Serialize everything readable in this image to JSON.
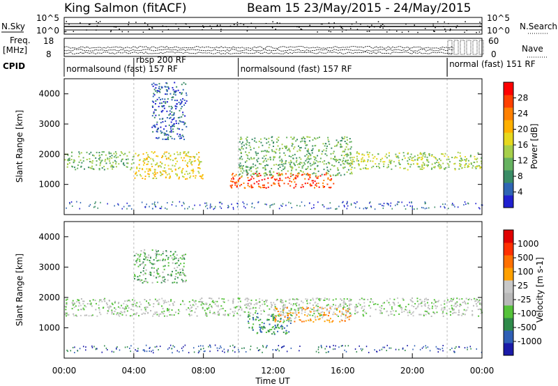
{
  "header": {
    "station": "King Salmon (fitACF)",
    "beam_dates": "Beam 15 23/May/2015 - 24/May/2015"
  },
  "labels": {
    "nsky": "N.Sky",
    "nsky_ticks": [
      "10^5",
      "10^0"
    ],
    "nsearch": "N.Search",
    "nsearch_ticks": [
      "10^5",
      "10^0"
    ],
    "freq_line1": "Freq.",
    "freq_line2": "[MHz]",
    "freq_ticks": [
      "18",
      "8"
    ],
    "nave": "Nave",
    "nave_ticks": [
      "60",
      "0"
    ],
    "cpid": "CPID"
  },
  "cpid_segments": [
    {
      "label": "normalsound (fast) 157 RF",
      "start_hour": 0.0,
      "end_hour": 4.0
    },
    {
      "label": "rbsp 200 RF",
      "start_hour": 4.0,
      "end_hour": 10.0
    },
    {
      "label": "normalsound (fast) 157 RF",
      "start_hour": 10.0,
      "end_hour": 22.0
    },
    {
      "label": "normal (fast) 151 RF",
      "start_hour": 22.0,
      "end_hour": 24.0
    }
  ],
  "chart_data": [
    {
      "type": "heatmap",
      "quantity": "Power",
      "ylabel": "Slant Range [km]",
      "xlabel": "",
      "xlim": [
        0,
        24
      ],
      "ylim": [
        0,
        4500
      ],
      "yticks": [
        1000,
        2000,
        3000,
        4000
      ],
      "colorbar": {
        "label": "Power [dB]",
        "ticks": [
          "28",
          "24",
          "20",
          "16",
          "12",
          "8",
          "4"
        ],
        "colors": [
          "#2020d0",
          "#2f65b3",
          "#3a8c66",
          "#66b260",
          "#a6cf4a",
          "#e6d81e",
          "#ffb000",
          "#ff8000",
          "#ff4000",
          "#ff0000"
        ]
      },
      "regions": [
        {
          "hour_start": 0.0,
          "hour_end": 4.0,
          "range_km_low": 1500,
          "range_km_high": 2100,
          "value": 12
        },
        {
          "hour_start": 4.0,
          "hour_end": 8.0,
          "range_km_low": 1200,
          "range_km_high": 2100,
          "value": 18
        },
        {
          "hour_start": 5.0,
          "hour_end": 7.0,
          "range_km_low": 2500,
          "range_km_high": 4400,
          "value": 6
        },
        {
          "hour_start": 9.5,
          "hour_end": 15.5,
          "range_km_low": 900,
          "range_km_high": 1400,
          "value": 28
        },
        {
          "hour_start": 10.0,
          "hour_end": 16.5,
          "range_km_low": 1300,
          "range_km_high": 2600,
          "value": 10
        },
        {
          "hour_start": 16.0,
          "hour_end": 24.0,
          "range_km_low": 1500,
          "range_km_high": 2100,
          "value": 14
        }
      ]
    },
    {
      "type": "heatmap",
      "quantity": "Velocity",
      "ylabel": "Slant Range [km]",
      "xlabel": "Time UT",
      "xlim": [
        0,
        24
      ],
      "ylim": [
        0,
        4500
      ],
      "yticks": [
        1000,
        2000,
        3000,
        4000
      ],
      "xticks": [
        "00:00",
        "04:00",
        "08:00",
        "12:00",
        "16:00",
        "20:00",
        "00:00"
      ],
      "colorbar": {
        "label": "Velocity [m s-1]",
        "ticks": [
          "1000",
          "500",
          "100",
          "25",
          "-25",
          "-100",
          "-500",
          "-1000"
        ],
        "colors": [
          "#1a1aa8",
          "#2f5fb5",
          "#2f8a4a",
          "#55c23a",
          "#b8b8b8",
          "#c8c8c8",
          "#ffa000",
          "#ff7000",
          "#ff3000",
          "#e00000"
        ]
      },
      "regions": [
        {
          "hour_start": 0.0,
          "hour_end": 24.0,
          "range_km_low": 1400,
          "range_km_high": 2000,
          "value": 0
        },
        {
          "hour_start": 4.0,
          "hour_end": 7.0,
          "range_km_low": 2500,
          "range_km_high": 3600,
          "value": -100
        },
        {
          "hour_start": 10.5,
          "hour_end": 13.0,
          "range_km_low": 800,
          "range_km_high": 1500,
          "value": -500
        },
        {
          "hour_start": 12.0,
          "hour_end": 16.5,
          "range_km_low": 1200,
          "range_km_high": 1700,
          "value": 100
        }
      ]
    }
  ]
}
